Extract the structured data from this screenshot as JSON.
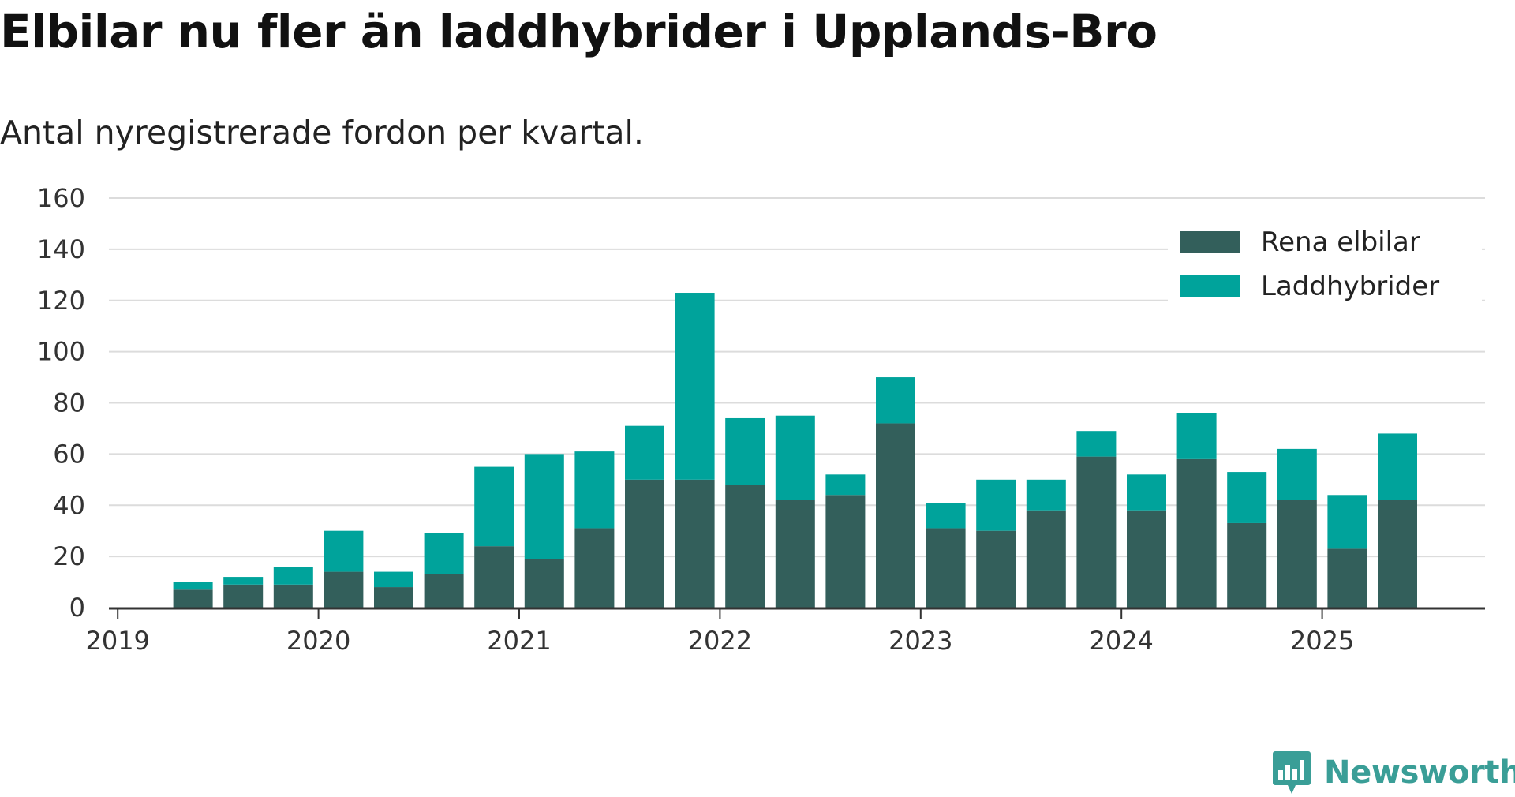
{
  "title": "Elbilar nu fler än laddhybrider i Upplands-Bro",
  "subtitle": "Antal nyregistrerade fordon per kvartal.",
  "brand": "Newsworthy",
  "colors": {
    "rena_elbilar": "#335f5b",
    "laddhybrider": "#00a39b",
    "grid": "#dcdcdc",
    "axis": "#333333",
    "brand": "#3a9e97"
  },
  "chart_data": {
    "type": "bar",
    "stacked": true,
    "x_ticks": [
      "2019",
      "2020",
      "2021",
      "2022",
      "2023",
      "2024",
      "2025"
    ],
    "y_ticks": [
      0,
      20,
      40,
      60,
      80,
      100,
      120,
      140,
      160
    ],
    "ylim": [
      0,
      160
    ],
    "grid": true,
    "legend_position": "top-right",
    "categories": [
      "2019 Q1",
      "2019 Q2",
      "2019 Q3",
      "2019 Q4",
      "2020 Q1",
      "2020 Q2",
      "2020 Q3",
      "2020 Q4",
      "2021 Q1",
      "2021 Q2",
      "2021 Q3",
      "2021 Q4",
      "2022 Q1",
      "2022 Q2",
      "2022 Q3",
      "2022 Q4",
      "2023 Q1",
      "2023 Q2",
      "2023 Q3",
      "2023 Q4",
      "2024 Q1",
      "2024 Q2",
      "2024 Q3",
      "2024 Q4",
      "2025 Q1",
      "2025 Q2"
    ],
    "series": [
      {
        "name": "Rena elbilar",
        "values": [
          0,
          7,
          9,
          9,
          14,
          8,
          13,
          24,
          19,
          31,
          50,
          50,
          48,
          42,
          44,
          72,
          31,
          30,
          38,
          59,
          38,
          58,
          33,
          42,
          23,
          42
        ]
      },
      {
        "name": "Laddhybrider",
        "values": [
          0,
          3,
          3,
          7,
          16,
          6,
          16,
          31,
          41,
          30,
          21,
          73,
          26,
          33,
          8,
          18,
          10,
          20,
          12,
          10,
          14,
          18,
          20,
          20,
          21,
          26
        ]
      }
    ]
  }
}
